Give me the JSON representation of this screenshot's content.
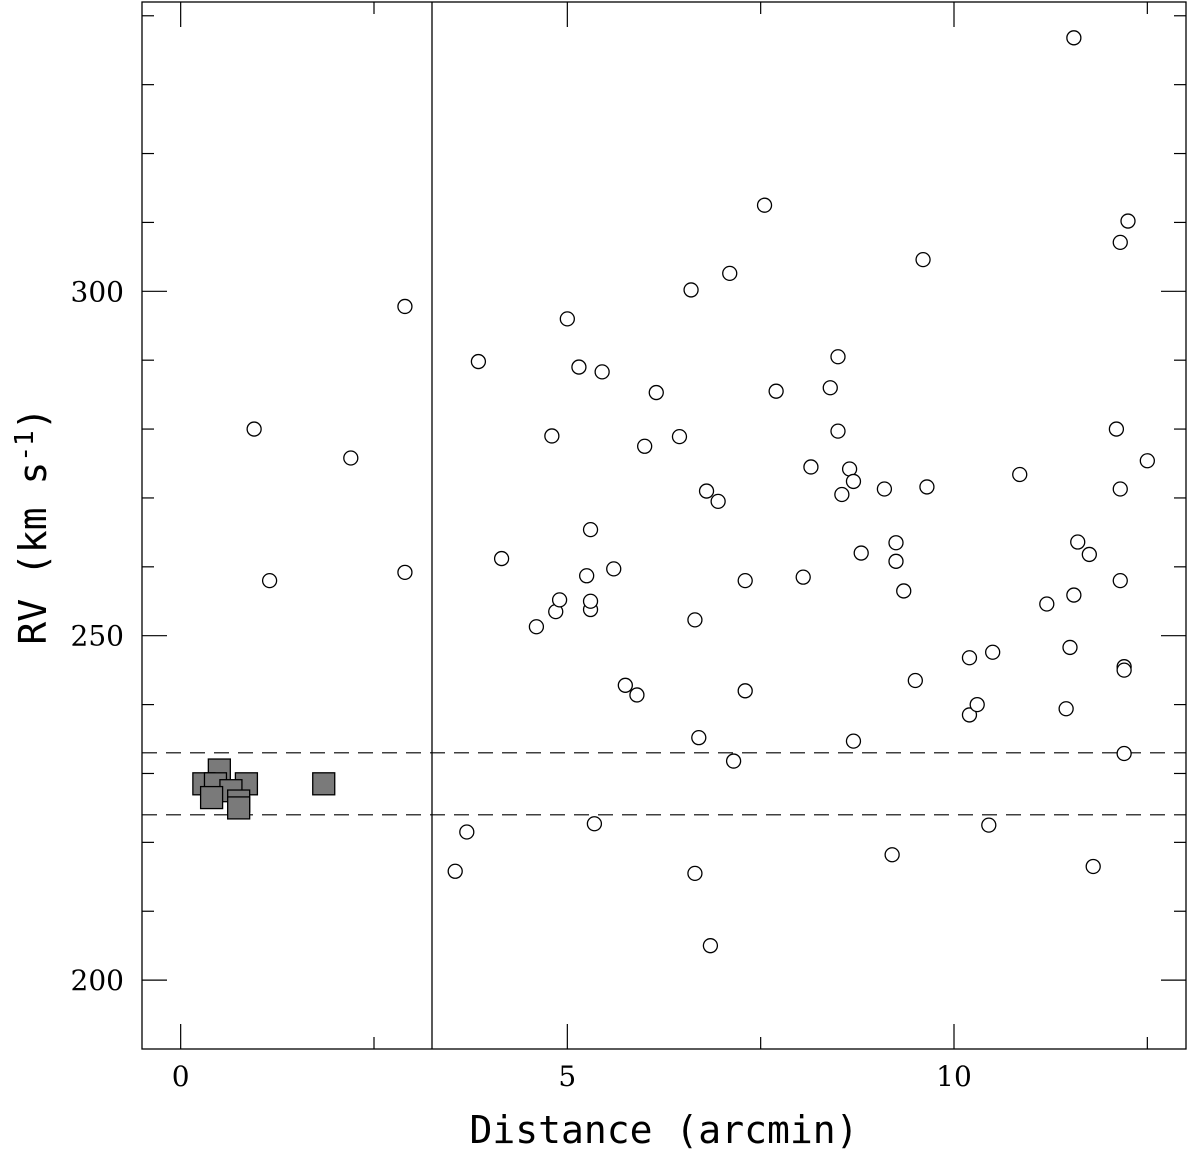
{
  "chart_data": {
    "type": "scatter",
    "xlabel": "Distance (arcmin)",
    "ylabel": "RV (km s",
    "ylabel_sup": "-1",
    "ylabel_tail": ")",
    "xlim": [
      -0.5,
      13.0
    ],
    "ylim": [
      190,
      342
    ],
    "x_ticks": [
      0,
      5,
      10
    ],
    "y_ticks": [
      200,
      250,
      300
    ],
    "vline_x": 3.25,
    "hlines_y": [
      233,
      224
    ],
    "marker_colors": {
      "filled": "#7a7a7a",
      "open": "#ffffff",
      "edge": "#000000"
    },
    "series": [
      {
        "marker": "filled-square",
        "points": [
          [
            0.5,
            230.5
          ],
          [
            0.3,
            228.5
          ],
          [
            0.45,
            228.5
          ],
          [
            0.85,
            228.5
          ],
          [
            0.65,
            227.5
          ],
          [
            0.75,
            226.0
          ],
          [
            0.4,
            226.5
          ],
          [
            0.75,
            225.0
          ],
          [
            1.85,
            228.5
          ]
        ]
      },
      {
        "marker": "open-circle",
        "points": [
          [
            0.95,
            280.0
          ],
          [
            2.2,
            275.8
          ],
          [
            1.15,
            258.0
          ],
          [
            2.9,
            297.8
          ],
          [
            2.9,
            259.2
          ],
          [
            3.55,
            215.8
          ],
          [
            3.7,
            221.5
          ],
          [
            3.85,
            289.8
          ],
          [
            4.15,
            261.2
          ],
          [
            4.6,
            251.3
          ],
          [
            4.8,
            279.0
          ],
          [
            4.85,
            253.5
          ],
          [
            4.9,
            255.2
          ],
          [
            5.0,
            296.0
          ],
          [
            5.15,
            289.0
          ],
          [
            5.25,
            258.7
          ],
          [
            5.3,
            253.8
          ],
          [
            5.3,
            255.0
          ],
          [
            5.3,
            265.4
          ],
          [
            5.35,
            222.7
          ],
          [
            5.45,
            288.3
          ],
          [
            5.6,
            259.7
          ],
          [
            5.75,
            242.8
          ],
          [
            5.9,
            241.4
          ],
          [
            6.0,
            277.5
          ],
          [
            6.15,
            285.3
          ],
          [
            6.45,
            278.9
          ],
          [
            6.6,
            300.2
          ],
          [
            6.65,
            252.3
          ],
          [
            6.65,
            215.5
          ],
          [
            6.7,
            235.2
          ],
          [
            6.8,
            271.0
          ],
          [
            6.85,
            205.0
          ],
          [
            6.95,
            269.5
          ],
          [
            7.1,
            302.6
          ],
          [
            7.15,
            231.8
          ],
          [
            7.3,
            258.0
          ],
          [
            7.3,
            242.0
          ],
          [
            7.55,
            312.5
          ],
          [
            7.7,
            285.5
          ],
          [
            8.05,
            258.5
          ],
          [
            8.15,
            274.5
          ],
          [
            8.4,
            286.0
          ],
          [
            8.5,
            290.5
          ],
          [
            8.5,
            279.7
          ],
          [
            8.55,
            270.5
          ],
          [
            8.65,
            274.2
          ],
          [
            8.7,
            272.4
          ],
          [
            8.7,
            234.7
          ],
          [
            8.8,
            262.0
          ],
          [
            9.1,
            271.3
          ],
          [
            9.2,
            218.2
          ],
          [
            9.25,
            263.5
          ],
          [
            9.25,
            260.8
          ],
          [
            9.35,
            256.5
          ],
          [
            9.5,
            243.5
          ],
          [
            9.6,
            304.6
          ],
          [
            9.65,
            271.6
          ],
          [
            10.2,
            246.8
          ],
          [
            10.2,
            238.5
          ],
          [
            10.3,
            240.0
          ],
          [
            10.45,
            222.5
          ],
          [
            10.5,
            247.6
          ],
          [
            10.85,
            273.4
          ],
          [
            11.2,
            254.6
          ],
          [
            11.45,
            239.4
          ],
          [
            11.5,
            248.3
          ],
          [
            11.55,
            255.9
          ],
          [
            11.55,
            336.8
          ],
          [
            11.6,
            263.6
          ],
          [
            11.75,
            261.8
          ],
          [
            11.8,
            216.5
          ],
          [
            12.1,
            280.0
          ],
          [
            12.15,
            258.0
          ],
          [
            12.15,
            307.1
          ],
          [
            12.15,
            271.3
          ],
          [
            12.2,
            245.5
          ],
          [
            12.2,
            245.0
          ],
          [
            12.2,
            232.9
          ],
          [
            12.25,
            310.2
          ],
          [
            12.5,
            275.4
          ]
        ]
      }
    ]
  }
}
